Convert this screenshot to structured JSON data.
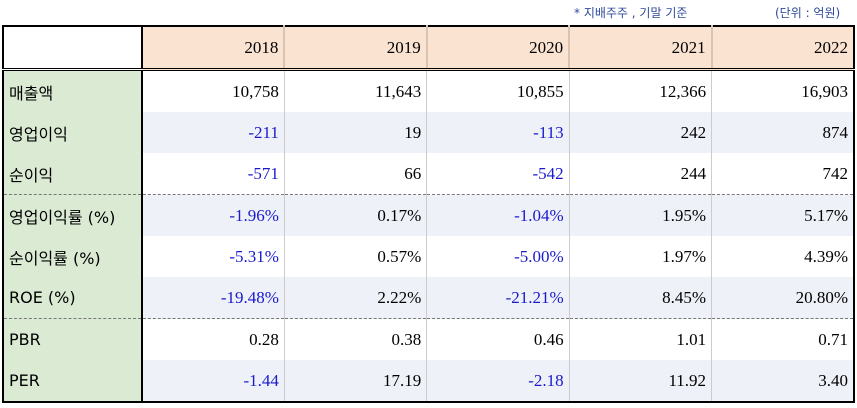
{
  "notes": {
    "basis": "* 지배주주 , 기말 기준",
    "unit": "(단위 : 억원)"
  },
  "table": {
    "corner": "",
    "years": [
      "2018",
      "2019",
      "2020",
      "2021",
      "2022"
    ],
    "rows": [
      {
        "label": "매출액",
        "values": [
          "10,758",
          "11,643",
          "10,855",
          "12,366",
          "16,903"
        ]
      },
      {
        "label": "영업이익",
        "values": [
          "-211",
          "19",
          "-113",
          "242",
          "874"
        ]
      },
      {
        "label": "순이익",
        "values": [
          "-571",
          "66",
          "-542",
          "244",
          "742"
        ]
      },
      {
        "label": "영업이익률 (%)",
        "values": [
          "-1.96%",
          "0.17%",
          "-1.04%",
          "1.95%",
          "5.17%"
        ]
      },
      {
        "label": "순이익률 (%)",
        "values": [
          "-5.31%",
          "0.57%",
          "-5.00%",
          "1.97%",
          "4.39%"
        ]
      },
      {
        "label": "ROE (%)",
        "values": [
          "-19.48%",
          "2.22%",
          "-21.21%",
          "8.45%",
          "20.80%"
        ]
      },
      {
        "label": "PBR",
        "values": [
          "0.28",
          "0.38",
          "0.46",
          "1.01",
          "0.71"
        ]
      },
      {
        "label": "PER",
        "values": [
          "-1.44",
          "17.19",
          "-2.18",
          "11.92",
          "3.40"
        ]
      }
    ]
  },
  "colors": {
    "negative": "#1a1acc",
    "header_bg": "#fbe3d1",
    "label_bg": "#dbead3",
    "alt_row_bg": "#eef1f7"
  }
}
